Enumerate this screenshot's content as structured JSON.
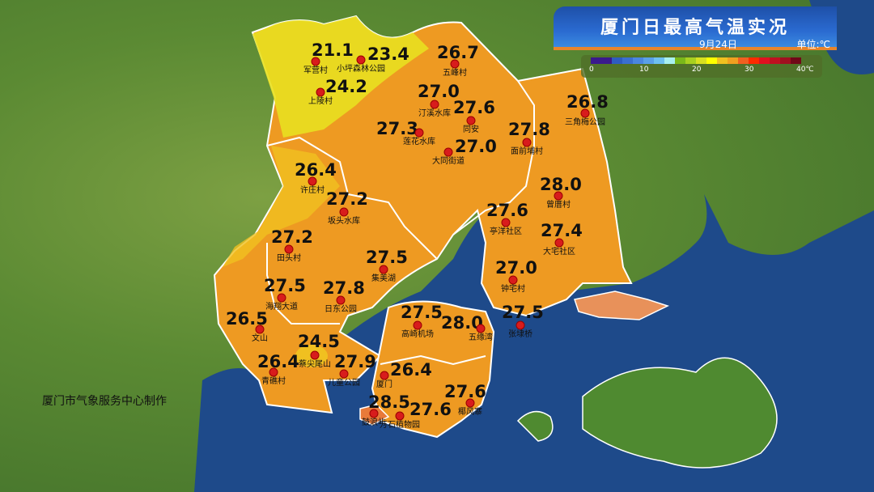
{
  "header": {
    "title": "厦门日最高气温实况",
    "date": "9月24日",
    "unit": "单位:℃"
  },
  "legend": {
    "ticks": [
      "0",
      "10",
      "20",
      "30",
      "40℃"
    ],
    "colors": [
      "#3a1a8c",
      "#3a1a8c",
      "#2e5cc0",
      "#3a6fd0",
      "#4a86e0",
      "#5aa0e8",
      "#6ec0f0",
      "#a8f0f0",
      "#7ab81a",
      "#a8d020",
      "#d8e020",
      "#ffff00",
      "#f0c020",
      "#f0a020",
      "#f06020",
      "#ff2a00",
      "#e01020",
      "#c01020",
      "#a01020",
      "#700818"
    ]
  },
  "credit": "厦门市气象服务中心制作",
  "colors": {
    "sea": "#1e4a8a",
    "land": "#ee9a22",
    "cool": "#e8d020",
    "warm": "#e87a3a"
  },
  "stations": [
    {
      "name": "军营村",
      "value": "21.1"
    },
    {
      "name": "小坪森林公园",
      "value": "23.4"
    },
    {
      "name": "上陵村",
      "value": "24.2"
    },
    {
      "name": "五峰村",
      "value": "26.7"
    },
    {
      "name": "汀溪水库",
      "value": "27.0"
    },
    {
      "name": "同安",
      "value": "27.6"
    },
    {
      "name": "莲花水库",
      "value": "27.3"
    },
    {
      "name": "大同街道",
      "value": "27.0"
    },
    {
      "name": "面前埔村",
      "value": "27.8"
    },
    {
      "name": "三角梅公园",
      "value": "26.8"
    },
    {
      "name": "许庄村",
      "value": "26.4"
    },
    {
      "name": "坂头水库",
      "value": "27.2"
    },
    {
      "name": "曾厝村",
      "value": "28.0"
    },
    {
      "name": "亭洋社区",
      "value": "27.6"
    },
    {
      "name": "大宅社区",
      "value": "27.4"
    },
    {
      "name": "田头村",
      "value": "27.2"
    },
    {
      "name": "集美湖",
      "value": "27.5"
    },
    {
      "name": "钟宅村",
      "value": "27.0"
    },
    {
      "name": "海翔大道",
      "value": "27.5"
    },
    {
      "name": "日东公园",
      "value": "27.8"
    },
    {
      "name": "文山",
      "value": "26.5"
    },
    {
      "name": "蔡尖尾山",
      "value": "24.5"
    },
    {
      "name": "青礁村",
      "value": "26.4"
    },
    {
      "name": "儿童公园",
      "value": "27.9"
    },
    {
      "name": "高崎机场",
      "value": "27.5"
    },
    {
      "name": "五缘湾",
      "value": "28.0"
    },
    {
      "name": "张埭桥",
      "value": "27.5"
    },
    {
      "name": "厦门",
      "value": "26.4"
    },
    {
      "name": "鼓浪屿",
      "value": "28.5"
    },
    {
      "name": "万石植物园",
      "value": "27.6"
    },
    {
      "name": "椰风寨",
      "value": "27.6"
    }
  ]
}
